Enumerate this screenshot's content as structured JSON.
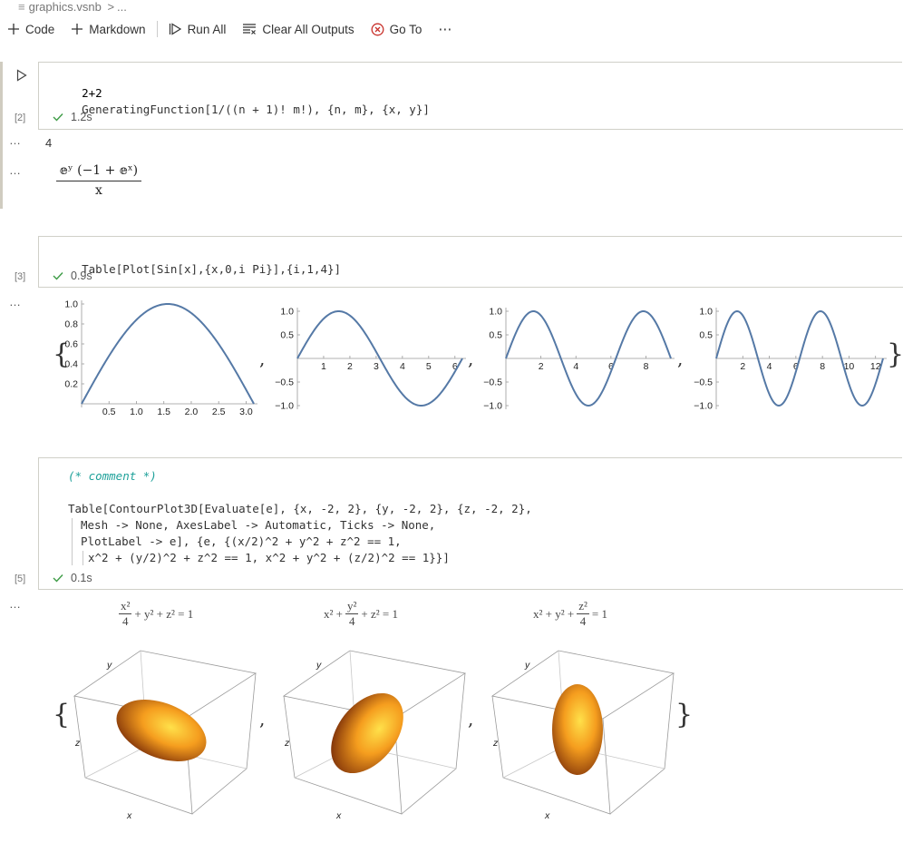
{
  "breadcrumb": {
    "file": "graphics.vsnb",
    "sep": ">",
    "tail": "..."
  },
  "toolbar": {
    "code": "Code",
    "markdown": "Markdown",
    "run_all": "Run All",
    "clear_outputs": "Clear All Outputs",
    "go_to": "Go To",
    "more": "⋯"
  },
  "cell1": {
    "line1": "2+2",
    "line2": "GeneratingFunction[1/((n + 1)! m!), {n, m}, {x, y}]",
    "exec": "[2]",
    "time": "1.2s",
    "out1": "4",
    "frac_num": "𝕖ʸ (−1 + 𝕖ˣ)",
    "frac_den": "x",
    "out_dots": "…"
  },
  "cell2": {
    "code": "Table[Plot[Sin[x],{x,0,i Pi}],{i,1,4}]",
    "exec": "[3]",
    "time": "0.9s"
  },
  "cell3": {
    "comment": "(* comment *)",
    "l1": "Table[ContourPlot3D[Evaluate[e], {x, -2, 2}, {y, -2, 2}, {z, -2, 2},",
    "l2": "Mesh -> None, AxesLabel -> Automatic, Ticks -> None,",
    "l3": "PlotLabel -> e], {e, {(x/2)^2 + y^2 + z^2 == 1,",
    "l4": "x^2 + (y/2)^2 + z^2 == 1, x^2 + y^2 + (z/2)^2 == 1}}]",
    "exec": "[5]",
    "time": "0.1s"
  },
  "plots3d": [
    {
      "label_pre": "",
      "frac_top": "x²",
      "frac_bot": "4",
      "label_post": "+ y² + z² = 1"
    },
    {
      "label_pre": "x² +",
      "frac_top": "y²",
      "frac_bot": "4",
      "label_post": "+ z² = 1"
    },
    {
      "label_pre": "x² + y² +",
      "frac_top": "z²",
      "frac_bot": "4",
      "label_post": "= 1"
    }
  ],
  "axis_letters": {
    "x": "x",
    "y": "y",
    "z": "z"
  },
  "brace_open": "{",
  "brace_close": "}",
  "comma": ",",
  "colors": {
    "curve": "#5579a6",
    "ellipsoid": "#f29a1c",
    "check": "#3c9b45",
    "error": "#c8312b"
  },
  "chart_data": [
    {
      "type": "line",
      "function": "Sin[x]",
      "xlim": [
        0,
        3.14159
      ],
      "ylim": [
        0,
        1.0
      ],
      "xticks": [
        "0.5",
        "1.0",
        "1.5",
        "2.0",
        "2.5",
        "3.0"
      ],
      "yticks": [
        "0.2",
        "0.4",
        "0.6",
        "0.8",
        "1.0"
      ]
    },
    {
      "type": "line",
      "function": "Sin[x]",
      "xlim": [
        0,
        6.28319
      ],
      "ylim": [
        -1.0,
        1.0
      ],
      "xticks": [
        "1",
        "2",
        "3",
        "4",
        "5",
        "6"
      ],
      "yticks": [
        "-1.0",
        "-0.5",
        "0.5",
        "1.0"
      ]
    },
    {
      "type": "line",
      "function": "Sin[x]",
      "xlim": [
        0,
        9.42478
      ],
      "ylim": [
        -1.0,
        1.0
      ],
      "xticks": [
        "2",
        "4",
        "6",
        "8"
      ],
      "yticks": [
        "-1.0",
        "-0.5",
        "0.5",
        "1.0"
      ]
    },
    {
      "type": "line",
      "function": "Sin[x]",
      "xlim": [
        0,
        12.56637
      ],
      "ylim": [
        -1.0,
        1.0
      ],
      "xticks": [
        "2",
        "4",
        "6",
        "8",
        "10",
        "12"
      ],
      "yticks": [
        "-1.0",
        "-0.5",
        "0.5",
        "1.0"
      ]
    }
  ]
}
